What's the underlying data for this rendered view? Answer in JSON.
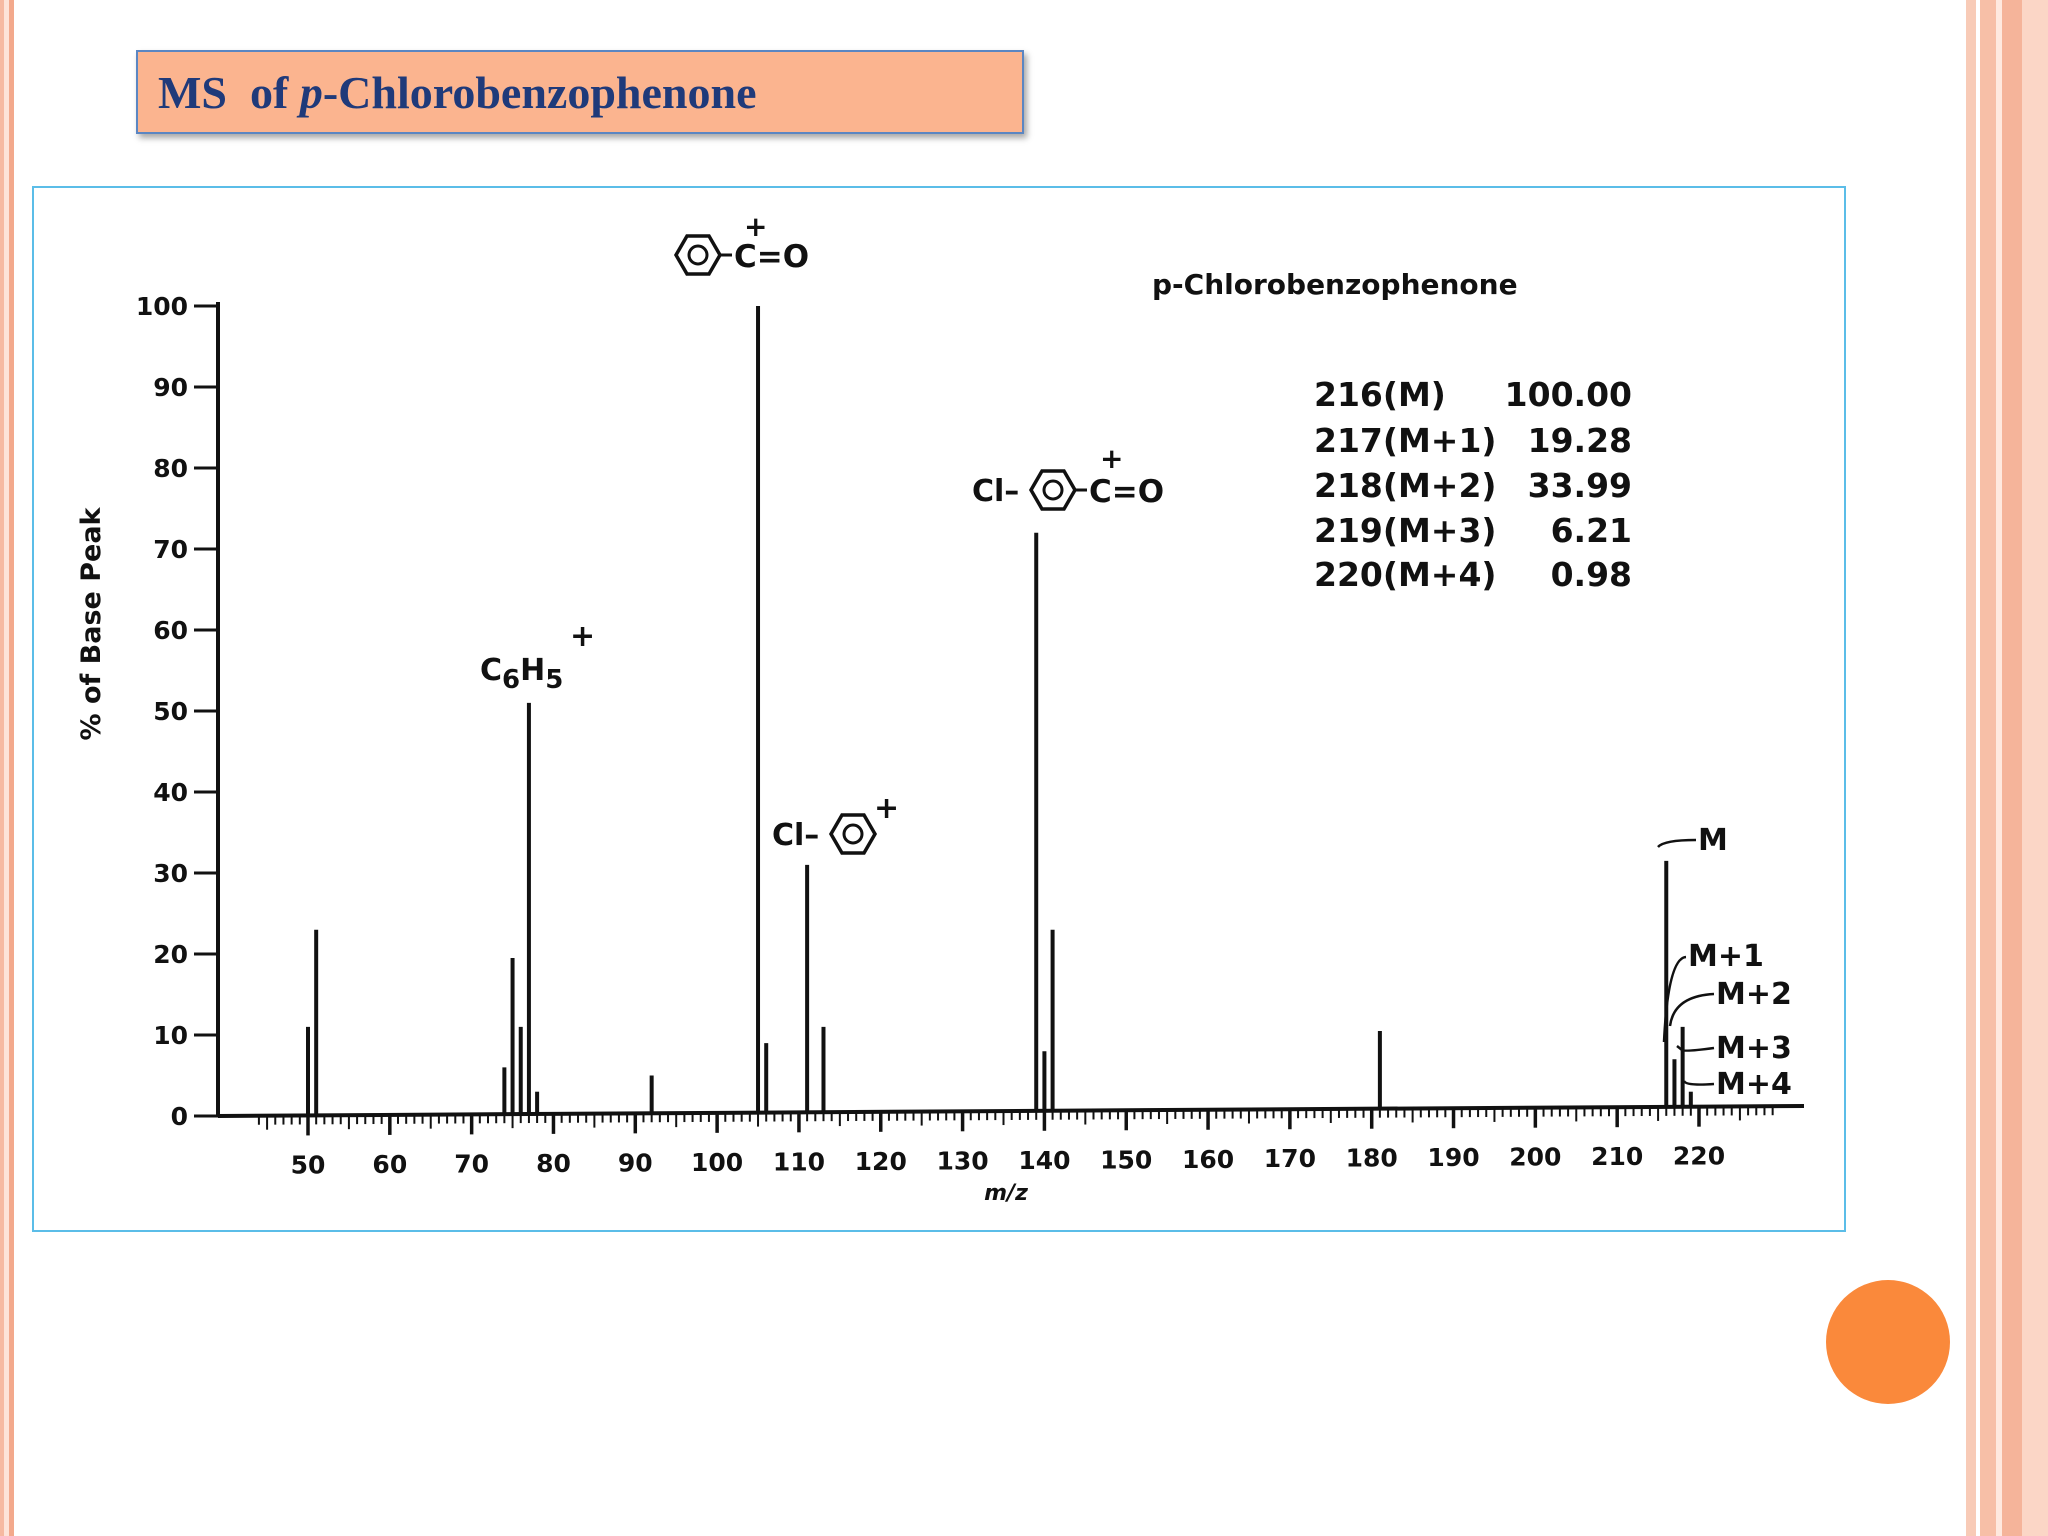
{
  "slide": {
    "title_prefix": "MS  of ",
    "title_italic": "p",
    "title_suffix": "-Chlorobenzophenone",
    "colors": {
      "title_bg": "#fbb48f",
      "title_text": "#1f3a7a",
      "frame_border": "#5bbde8",
      "accent_dot": "#fa893b"
    }
  },
  "chart_data": {
    "type": "bar",
    "title": "p-Chlorobenzophenone",
    "xlabel": "m/z",
    "ylabel": "% of Base Peak",
    "xlim": [
      40,
      230
    ],
    "ylim": [
      0,
      100
    ],
    "x_ticks": [
      50,
      60,
      70,
      80,
      90,
      100,
      110,
      120,
      130,
      140,
      150,
      160,
      170,
      180,
      190,
      200,
      210,
      220
    ],
    "y_ticks": [
      0,
      10,
      20,
      30,
      40,
      50,
      60,
      70,
      80,
      90,
      100
    ],
    "peaks": [
      {
        "mz": 50,
        "intensity": 11
      },
      {
        "mz": 51,
        "intensity": 23
      },
      {
        "mz": 74,
        "intensity": 6
      },
      {
        "mz": 75,
        "intensity": 19.5
      },
      {
        "mz": 76,
        "intensity": 11
      },
      {
        "mz": 77,
        "intensity": 51
      },
      {
        "mz": 78,
        "intensity": 3
      },
      {
        "mz": 92,
        "intensity": 5
      },
      {
        "mz": 105,
        "intensity": 100
      },
      {
        "mz": 106,
        "intensity": 9
      },
      {
        "mz": 111,
        "intensity": 31
      },
      {
        "mz": 113,
        "intensity": 11
      },
      {
        "mz": 139,
        "intensity": 72
      },
      {
        "mz": 140,
        "intensity": 8
      },
      {
        "mz": 141,
        "intensity": 23
      },
      {
        "mz": 181,
        "intensity": 10.5
      },
      {
        "mz": 216,
        "intensity": 31.5
      },
      {
        "mz": 217,
        "intensity": 7
      },
      {
        "mz": 218,
        "intensity": 11
      },
      {
        "mz": 219,
        "intensity": 3
      },
      {
        "mz": 220,
        "intensity": 1
      }
    ],
    "fragment_labels": {
      "c6h5_main": "C",
      "c6h5_sub6": "6",
      "c6h5_h": "H",
      "c6h5_sub5": "5",
      "plus": "+",
      "benzoyl_co": "C=O",
      "chloro_prefix": "Cl–",
      "chlorobenzoyl_co": "C=O"
    },
    "isotope_labels": [
      "M",
      "M+1",
      "M+2",
      "M+3",
      "M+4"
    ],
    "isotope_table": [
      {
        "label": "216(M)",
        "value": "100.00"
      },
      {
        "label": "217(M+1)",
        "value": "19.28"
      },
      {
        "label": "218(M+2)",
        "value": "33.99"
      },
      {
        "label": "219(M+3)",
        "value": "6.21"
      },
      {
        "label": "220(M+4)",
        "value": "0.98"
      }
    ],
    "grid": false
  }
}
